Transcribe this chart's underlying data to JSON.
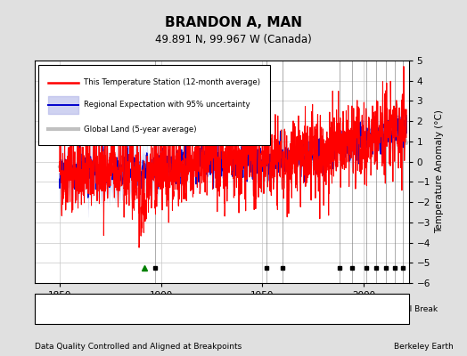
{
  "title": "BRANDON A, MAN",
  "subtitle": "49.891 N, 99.967 W (Canada)",
  "ylabel": "Temperature Anomaly (°C)",
  "xlabel_note": "Data Quality Controlled and Aligned at Breakpoints",
  "credit": "Berkeley Earth",
  "ylim": [
    -6,
    5
  ],
  "xlim": [
    1838,
    2022
  ],
  "yticks": [
    -6,
    -5,
    -4,
    -3,
    -2,
    -1,
    0,
    1,
    2,
    3,
    4,
    5
  ],
  "xticks": [
    1850,
    1900,
    1950,
    2000
  ],
  "bg_color": "#e0e0e0",
  "plot_bg_color": "#ffffff",
  "grid_color": "#c8c8c8",
  "station_color": "#ff0000",
  "regional_color": "#0000cc",
  "regional_fill_color": "#9999dd",
  "global_color": "#c0c0c0",
  "vertical_lines_color": "#888888",
  "record_gap_years": [
    1892
  ],
  "empirical_break_years": [
    1897,
    1952,
    1960,
    1988,
    1994,
    2001,
    2006,
    2011,
    2015,
    2019
  ],
  "station_move_years": [],
  "time_obs_years": []
}
